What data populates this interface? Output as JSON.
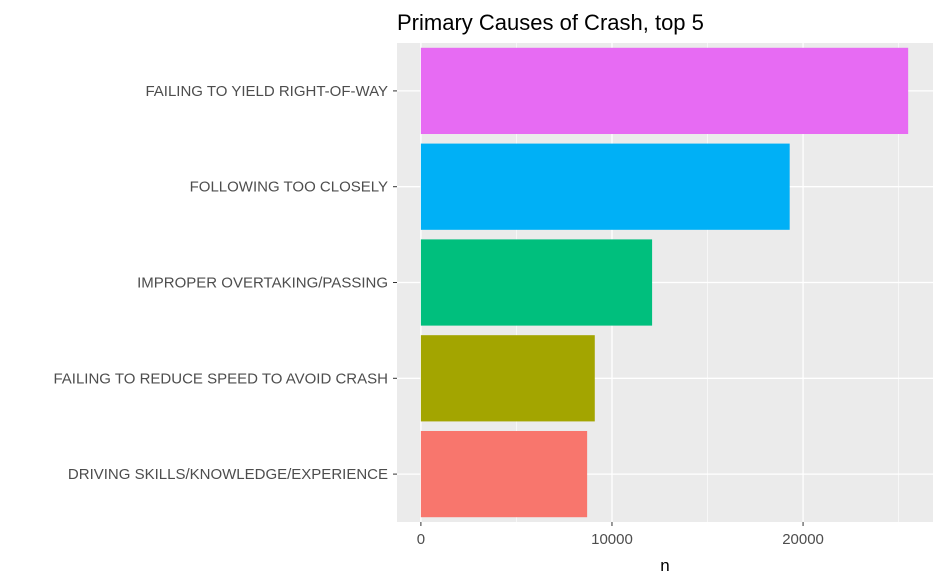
{
  "chart_data": {
    "type": "bar",
    "orientation": "horizontal",
    "title": "Primary Causes of Crash, top 5",
    "xlabel": "n",
    "ylabel": "",
    "categories": [
      "FAILING TO YIELD RIGHT-OF-WAY",
      "FOLLOWING TOO CLOSELY",
      "IMPROPER OVERTAKING/PASSING",
      "FAILING TO REDUCE SPEED TO AVOID CRASH",
      "DRIVING SKILLS/KNOWLEDGE/EXPERIENCE"
    ],
    "values": [
      25500,
      19300,
      12100,
      9100,
      8700
    ],
    "colors": [
      "#E76BF3",
      "#00B0F6",
      "#00BF7D",
      "#A3A500",
      "#F8766D"
    ],
    "xlim": [
      -1250,
      26800
    ],
    "x_ticks": [
      0,
      10000,
      20000
    ],
    "x_tick_labels": [
      "0",
      "10000",
      "20000"
    ],
    "grid": true,
    "legend": "none",
    "panel_background": "#EBEBEB",
    "grid_color": "#FFFFFF"
  }
}
